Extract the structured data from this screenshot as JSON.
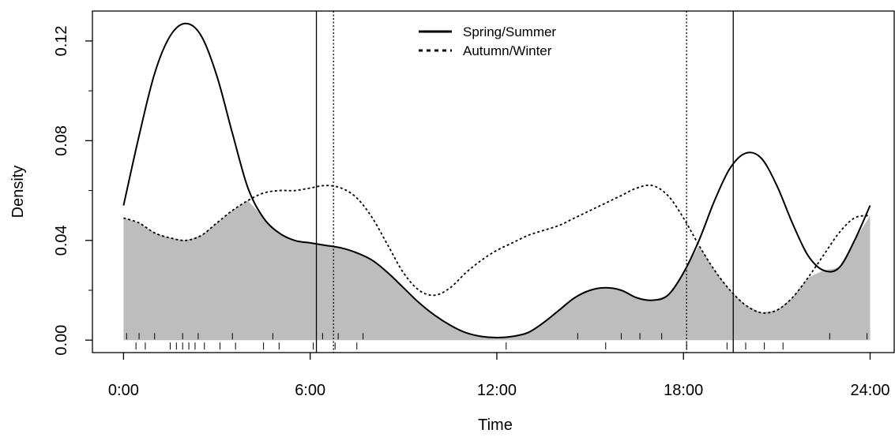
{
  "chart_data": {
    "type": "line",
    "xlabel": "Time",
    "ylabel": "Density",
    "xlim": [
      -1.0,
      24.8
    ],
    "ylim": [
      -0.005,
      0.132
    ],
    "x_ticks": [
      {
        "value": 0,
        "label": "0:00"
      },
      {
        "value": 6,
        "label": "6:00"
      },
      {
        "value": 12,
        "label": "12:00"
      },
      {
        "value": 18,
        "label": "18:00"
      },
      {
        "value": 24,
        "label": "24:00"
      }
    ],
    "y_ticks": [
      {
        "value": 0,
        "label": "0.00"
      },
      {
        "value": 0.04,
        "label": "0.04"
      },
      {
        "value": 0.08,
        "label": "0.08"
      },
      {
        "value": 0.12,
        "label": "0.12"
      }
    ],
    "legend": {
      "position": "top-center",
      "entries": [
        {
          "label": "Spring/Summer",
          "style": "solid"
        },
        {
          "label": "Autumn/Winter",
          "style": "dotted"
        }
      ]
    },
    "series": [
      {
        "name": "Spring/Summer",
        "style": "solid",
        "color": "#000000",
        "x": [
          0,
          0.5,
          1,
          1.5,
          2,
          2.5,
          3,
          3.5,
          4,
          4.5,
          5,
          5.5,
          6,
          6.5,
          7,
          7.5,
          8,
          8.5,
          9,
          9.5,
          10,
          10.5,
          11,
          11.5,
          12,
          12.5,
          13,
          13.5,
          14,
          14.5,
          15,
          15.5,
          16,
          16.5,
          17,
          17.5,
          18,
          18.5,
          19,
          19.5,
          20,
          20.5,
          21,
          21.5,
          22,
          22.5,
          23,
          23.5,
          24
        ],
        "y": [
          0.054,
          0.082,
          0.107,
          0.122,
          0.127,
          0.122,
          0.106,
          0.083,
          0.061,
          0.049,
          0.043,
          0.04,
          0.039,
          0.038,
          0.037,
          0.035,
          0.032,
          0.027,
          0.021,
          0.015,
          0.01,
          0.006,
          0.003,
          0.0015,
          0.001,
          0.0015,
          0.003,
          0.007,
          0.012,
          0.017,
          0.02,
          0.021,
          0.02,
          0.017,
          0.016,
          0.018,
          0.027,
          0.04,
          0.056,
          0.069,
          0.075,
          0.073,
          0.062,
          0.047,
          0.034,
          0.028,
          0.029,
          0.04,
          0.054
        ]
      },
      {
        "name": "Autumn/Winter",
        "style": "dotted",
        "color": "#000000",
        "x": [
          0,
          0.5,
          1,
          1.5,
          2,
          2.5,
          3,
          3.5,
          4,
          4.5,
          5,
          5.5,
          6,
          6.5,
          7,
          7.5,
          8,
          8.5,
          9,
          9.5,
          10,
          10.5,
          11,
          11.5,
          12,
          12.5,
          13,
          13.5,
          14,
          14.5,
          15,
          15.5,
          16,
          16.5,
          17,
          17.5,
          18,
          18.5,
          19,
          19.5,
          20,
          20.5,
          21,
          21.5,
          22,
          22.5,
          23,
          23.5,
          24
        ],
        "y": [
          0.049,
          0.047,
          0.043,
          0.041,
          0.04,
          0.042,
          0.047,
          0.052,
          0.056,
          0.059,
          0.06,
          0.06,
          0.061,
          0.062,
          0.061,
          0.057,
          0.049,
          0.038,
          0.027,
          0.02,
          0.018,
          0.021,
          0.027,
          0.032,
          0.036,
          0.039,
          0.042,
          0.044,
          0.046,
          0.049,
          0.052,
          0.055,
          0.058,
          0.061,
          0.062,
          0.058,
          0.049,
          0.038,
          0.028,
          0.02,
          0.014,
          0.011,
          0.012,
          0.017,
          0.025,
          0.034,
          0.043,
          0.049,
          0.05
        ]
      }
    ],
    "overlap_fill": {
      "color": "#bdbdbd",
      "description": "shaded area under both curves"
    },
    "vertical_lines": [
      {
        "x": 6.2,
        "style": "solid",
        "series": "Spring/Summer"
      },
      {
        "x": 19.6,
        "style": "solid",
        "series": "Spring/Summer"
      },
      {
        "x": 6.75,
        "style": "dotted",
        "series": "Autumn/Winter"
      },
      {
        "x": 18.1,
        "style": "dotted",
        "series": "Autumn/Winter"
      }
    ],
    "rug_bottom": [
      0.4,
      0.7,
      1.5,
      1.7,
      1.9,
      2.1,
      2.3,
      2.6,
      3.1,
      3.6,
      4.5,
      5.0,
      6.1,
      6.8,
      7.5,
      12.3,
      15.5,
      18.1,
      19.4,
      20.0,
      20.6,
      21.2
    ],
    "rug_top": [
      0.1,
      0.5,
      1.0,
      1.9,
      2.4,
      3.5,
      4.8,
      6.4,
      6.9,
      7.7,
      14.6,
      16.0,
      16.6,
      17.3,
      22.7,
      23.9
    ]
  }
}
